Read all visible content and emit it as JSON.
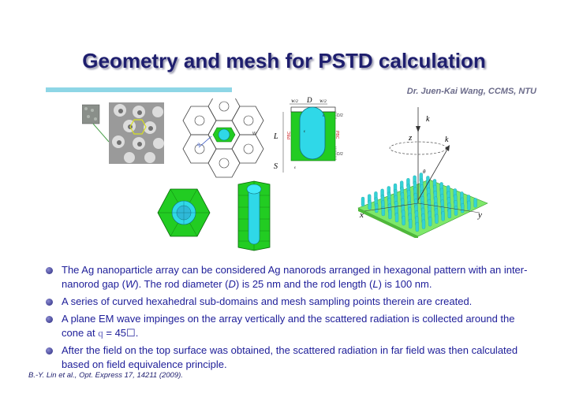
{
  "slide": {
    "title": "Geometry and mesh for PSTD calculation",
    "author": "Dr. Juen-Kai Wang, CCMS, NTU",
    "bullets": [
      {
        "pre": "The Ag nanoparticle array can be considered Ag nanorods arranged in hexagonal pattern with an inter-nanorod gap (",
        "i1": "W",
        "mid1": ").  The rod diameter (",
        "i2": "D",
        "mid2": ") is 25 nm and the rod length (",
        "i3": "L",
        "post": ") is 100 nm."
      },
      {
        "text": "A series of curved hexahedral sub-domains and mesh sampling points therein are created."
      },
      {
        "pre": "A plane EM wave impinges on the array vertically and the scattered radiation is collected around the cone at ",
        "sym": "q",
        "post": " = 45☐."
      },
      {
        "text": "After the field on the top surface was obtained, the scattered radiation in far field was then calculated based on field equivalence principle."
      }
    ],
    "citation": "B.-Y. Lin et al., Opt. Express 17, 14211 (2009)."
  },
  "figure_labels": {
    "unit_cell": {
      "D": "D",
      "W2a": "W/2",
      "W2b": "W/2",
      "D2a": "D/2",
      "D2b": "D/2",
      "L": "L",
      "S": "S",
      "PBC1": "PBC",
      "PBC2": "PBC"
    },
    "radiation": {
      "ki": "k",
      "ks": "k",
      "z": "z",
      "x": "x",
      "y": "y",
      "theta": "θ"
    }
  },
  "colors": {
    "title": "#1e1e6e",
    "bullet_text": "#20209a",
    "accent_rule": "#8ed6e6",
    "mesh_green": "#22cc22",
    "rod_cyan": "#2fd8e8"
  }
}
